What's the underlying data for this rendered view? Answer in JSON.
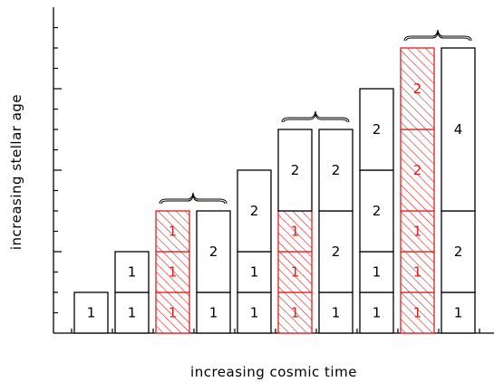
{
  "diagram": {
    "x_axis_label": "increasing cosmic time",
    "y_axis_label": "increasing stellar age",
    "colors": {
      "outline": "#000000",
      "hatched": "#e01e1e",
      "background": "#ffffff"
    },
    "columns": [
      {
        "segments": [
          {
            "units": 1,
            "label": "1",
            "hatched": false
          }
        ]
      },
      {
        "segments": [
          {
            "units": 1,
            "label": "1",
            "hatched": false
          },
          {
            "units": 1,
            "label": "1",
            "hatched": false
          }
        ]
      },
      {
        "segments": [
          {
            "units": 1,
            "label": "1",
            "hatched": true
          },
          {
            "units": 1,
            "label": "1",
            "hatched": true
          },
          {
            "units": 1,
            "label": "1",
            "hatched": true
          }
        ],
        "brace_with_next": true
      },
      {
        "segments": [
          {
            "units": 1,
            "label": "1",
            "hatched": false
          },
          {
            "units": 2,
            "label": "2",
            "hatched": false
          }
        ]
      },
      {
        "segments": [
          {
            "units": 1,
            "label": "1",
            "hatched": false
          },
          {
            "units": 1,
            "label": "1",
            "hatched": false
          },
          {
            "units": 2,
            "label": "2",
            "hatched": false
          }
        ]
      },
      {
        "segments": [
          {
            "units": 1,
            "label": "1",
            "hatched": true
          },
          {
            "units": 1,
            "label": "1",
            "hatched": true
          },
          {
            "units": 1,
            "label": "1",
            "hatched": true
          },
          {
            "units": 2,
            "label": "2",
            "hatched": false
          }
        ],
        "brace_with_next": true
      },
      {
        "segments": [
          {
            "units": 1,
            "label": "1",
            "hatched": false
          },
          {
            "units": 2,
            "label": "2",
            "hatched": false
          },
          {
            "units": 2,
            "label": "2",
            "hatched": false
          }
        ]
      },
      {
        "segments": [
          {
            "units": 1,
            "label": "1",
            "hatched": false
          },
          {
            "units": 1,
            "label": "1",
            "hatched": false
          },
          {
            "units": 2,
            "label": "2",
            "hatched": false
          },
          {
            "units": 2,
            "label": "2",
            "hatched": false
          }
        ]
      },
      {
        "segments": [
          {
            "units": 1,
            "label": "1",
            "hatched": true
          },
          {
            "units": 1,
            "label": "1",
            "hatched": true
          },
          {
            "units": 1,
            "label": "1",
            "hatched": true
          },
          {
            "units": 2,
            "label": "2",
            "hatched": true
          },
          {
            "units": 2,
            "label": "2",
            "hatched": true
          }
        ],
        "brace_with_next": true
      },
      {
        "segments": [
          {
            "units": 1,
            "label": "1",
            "hatched": false
          },
          {
            "units": 2,
            "label": "2",
            "hatched": false
          },
          {
            "units": 4,
            "label": "4",
            "hatched": false
          }
        ]
      }
    ]
  }
}
